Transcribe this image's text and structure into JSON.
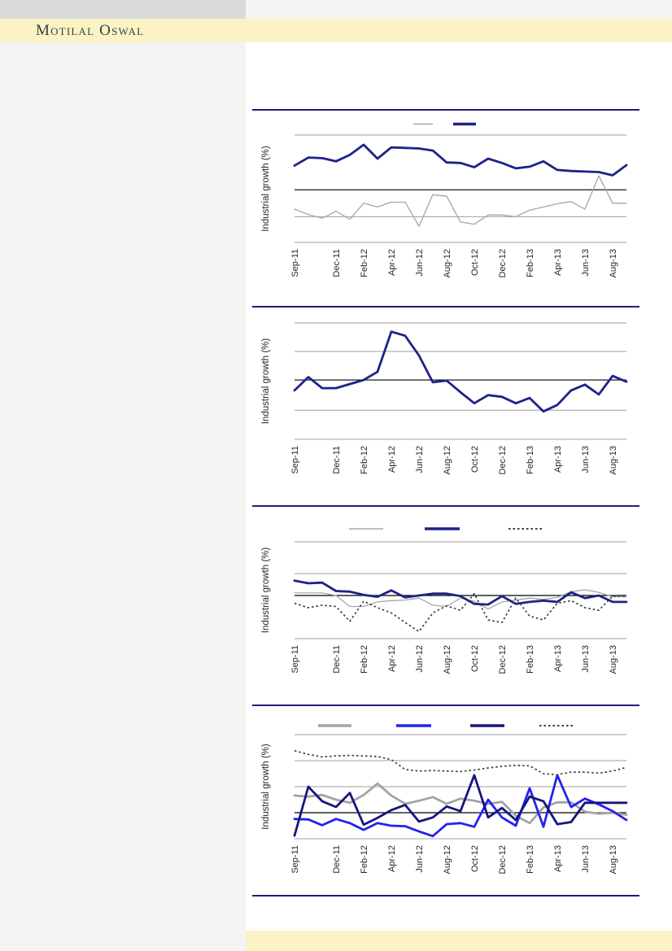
{
  "header": {
    "logo_text": "Motilal Oswal"
  },
  "colors": {
    "rule_navy": "#1d2079",
    "grid_gray": "#9f9f9f",
    "zero_black": "#000000",
    "tick_text": "#262626",
    "navy_line": "#1f2288",
    "navy_dark_line": "#15157e",
    "bright_blue_line": "#2222f0",
    "gray_line": "#a6a6a6",
    "dotted_line": "#3d3d3d",
    "brand_band_yellow": "#fbf3c6",
    "top_bar_gray": "#d9d9d9",
    "left_panel_gray": "#f4f4f4"
  },
  "chart_data": [
    {
      "type": "line",
      "title": "",
      "ylabel": "Industrial growth (%)",
      "categories": [
        "Sep-11",
        "Oct-11",
        "Nov-11",
        "Dec-11",
        "Jan-12",
        "Feb-12",
        "Mar-12",
        "Apr-12",
        "May-12",
        "Jun-12",
        "Jul-12",
        "Aug-12",
        "Sep-12",
        "Oct-12",
        "Nov-12",
        "Dec-12",
        "Jan-13",
        "Feb-13",
        "Mar-13",
        "Apr-13",
        "May-13",
        "Jun-13",
        "Jul-13",
        "Aug-13",
        "Sep-13"
      ],
      "x_tick_indices": [
        0,
        3,
        5,
        7,
        9,
        11,
        13,
        15,
        17,
        19,
        21,
        23
      ],
      "ylim": [
        -9.8,
        10.2
      ],
      "gridline_values": [
        10.2,
        -5,
        -9.8
      ],
      "zero_line": true,
      "legend": {
        "visible": true,
        "position": "top",
        "labels": [
          "",
          ""
        ]
      },
      "series": [
        {
          "name": "",
          "appearance": "gray",
          "color_hex": "#a6a6a6",
          "thickness": "thin",
          "line_style": "solid",
          "values": [
            -3.6,
            -4.6,
            -5.3,
            -4.0,
            -5.5,
            -2.5,
            -3.2,
            -2.3,
            -2.3,
            -6.8,
            -0.9,
            -1.2,
            -6.0,
            -6.4,
            -4.7,
            -4.7,
            -5.0,
            -3.8,
            -3.2,
            -2.6,
            -2.2,
            -3.6,
            2.6,
            -2.5,
            -2.5
          ]
        },
        {
          "name": "",
          "appearance": "navy",
          "color_hex": "#1f2288",
          "thickness": "thick",
          "line_style": "solid",
          "values": [
            4.5,
            6.0,
            5.9,
            5.3,
            6.5,
            8.4,
            5.8,
            7.9,
            7.8,
            7.7,
            7.3,
            5.1,
            5.0,
            4.2,
            5.8,
            5.0,
            4.0,
            4.3,
            5.3,
            3.7,
            3.5,
            3.4,
            3.3,
            2.7,
            4.6
          ]
        }
      ]
    },
    {
      "type": "line",
      "title": "",
      "ylabel": "Industrial growth (%)",
      "categories": [
        "Sep-11",
        "Oct-11",
        "Nov-11",
        "Dec-11",
        "Jan-12",
        "Feb-12",
        "Mar-12",
        "Apr-12",
        "May-12",
        "Jun-12",
        "Jul-12",
        "Aug-12",
        "Sep-12",
        "Oct-12",
        "Nov-12",
        "Dec-12",
        "Jan-13",
        "Feb-13",
        "Mar-13",
        "Apr-13",
        "May-13",
        "Jun-13",
        "Jul-13",
        "Aug-13",
        "Sep-13"
      ],
      "x_tick_indices": [
        0,
        3,
        5,
        7,
        9,
        11,
        13,
        15,
        17,
        19,
        21,
        23
      ],
      "ylim": [
        -10.2,
        9.8
      ],
      "gridline_values": [
        9.8,
        4.9,
        -5.2,
        -10.2
      ],
      "zero_line": true,
      "legend": {
        "visible": false,
        "position": "none",
        "labels": []
      },
      "series": [
        {
          "name": "",
          "appearance": "navy",
          "color_hex": "#1f2288",
          "thickness": "thick",
          "line_style": "solid",
          "values": [
            -1.8,
            0.5,
            -1.4,
            -1.4,
            -0.7,
            0.0,
            1.4,
            8.3,
            7.6,
            4.2,
            -0.4,
            -0.1,
            -2.1,
            -4.0,
            -2.6,
            -2.9,
            -4.0,
            -3.1,
            -5.4,
            -4.3,
            -1.8,
            -0.8,
            -2.5,
            0.7,
            -0.3
          ]
        }
      ]
    },
    {
      "type": "line",
      "title": "",
      "ylabel": "Industrial growth (%)",
      "categories": [
        "Sep-11",
        "Oct-11",
        "Nov-11",
        "Dec-11",
        "Jan-12",
        "Feb-12",
        "Mar-12",
        "Apr-12",
        "May-12",
        "Jun-12",
        "Jul-12",
        "Aug-12",
        "Sep-12",
        "Oct-12",
        "Nov-12",
        "Dec-12",
        "Jan-13",
        "Feb-13",
        "Mar-13",
        "Apr-13",
        "May-13",
        "Jun-13",
        "Jul-13",
        "Aug-13",
        "Sep-13"
      ],
      "x_tick_indices": [
        0,
        3,
        5,
        7,
        9,
        11,
        13,
        15,
        17,
        19,
        21,
        23
      ],
      "ylim": [
        -6.7,
        8.35
      ],
      "gridline_values": [
        8.35,
        3.4,
        -6.7
      ],
      "zero_line": true,
      "legend": {
        "visible": true,
        "position": "top",
        "labels": [
          "",
          "",
          ""
        ]
      },
      "series": [
        {
          "name": "",
          "appearance": "gray",
          "color_hex": "#a6a6a6",
          "thickness": "thin",
          "line_style": "solid",
          "values": [
            0.4,
            0.4,
            0.4,
            0.0,
            -1.7,
            -1.7,
            -1.0,
            -0.8,
            -0.7,
            -0.4,
            -1.5,
            -1.7,
            -0.4,
            -0.9,
            -2.1,
            -1.0,
            -0.7,
            -0.4,
            -0.6,
            -0.3,
            0.6,
            0.9,
            0.5,
            -0.2,
            -0.2
          ]
        },
        {
          "name": "",
          "appearance": "navy",
          "color_hex": "#1f2288",
          "thickness": "thick",
          "line_style": "solid",
          "values": [
            2.3,
            1.9,
            2.0,
            0.7,
            0.6,
            0.1,
            -0.2,
            0.8,
            -0.3,
            0.0,
            0.3,
            0.3,
            -0.1,
            -1.3,
            -1.4,
            -0.1,
            -1.3,
            -1.0,
            -0.8,
            -1.0,
            0.5,
            -0.4,
            0.0,
            -1.0,
            -1.0
          ]
        },
        {
          "name": "",
          "appearance": "dotted",
          "color_hex": "#3d3d3d",
          "thickness": "thin",
          "line_style": "dotted",
          "values": [
            -1.2,
            -1.9,
            -1.5,
            -1.7,
            -4.0,
            -0.9,
            -1.9,
            -2.7,
            -4.2,
            -5.6,
            -2.7,
            -1.6,
            -2.3,
            0.3,
            -3.8,
            -4.2,
            -0.4,
            -3.2,
            -3.8,
            -1.2,
            -0.8,
            -1.9,
            -2.3,
            -0.1,
            -0.1
          ]
        }
      ]
    },
    {
      "type": "line",
      "title": "",
      "ylabel": "Industrial growth (%)",
      "categories": [
        "Sep-11",
        "Oct-11",
        "Nov-11",
        "Dec-11",
        "Jan-12",
        "Feb-12",
        "Mar-12",
        "Apr-12",
        "May-12",
        "Jun-12",
        "Jul-12",
        "Aug-12",
        "Sep-12",
        "Oct-12",
        "Nov-12",
        "Dec-12",
        "Jan-13",
        "Feb-13",
        "Mar-13",
        "Apr-13",
        "May-13",
        "Jun-13",
        "Jul-13",
        "Aug-13",
        "Sep-13"
      ],
      "x_tick_indices": [
        0,
        3,
        5,
        7,
        9,
        11,
        13,
        15,
        17,
        19,
        21,
        23
      ],
      "ylim": [
        -5,
        15
      ],
      "gridline_values": [
        15,
        10,
        5,
        -5
      ],
      "zero_line": true,
      "legend": {
        "visible": true,
        "position": "top",
        "labels": [
          "",
          "",
          "",
          ""
        ]
      },
      "series": [
        {
          "name": "",
          "appearance": "gray",
          "color_hex": "#a3a3a3",
          "thickness": "thick",
          "line_style": "solid",
          "values": [
            3.3,
            3.1,
            3.4,
            2.5,
            1.9,
            3.4,
            5.6,
            3.3,
            1.7,
            2.3,
            3.0,
            1.7,
            2.7,
            2.3,
            1.7,
            2.1,
            -0.6,
            -2.0,
            1.0,
            2.0,
            2.0,
            0.2,
            -0.2,
            0.0,
            -0.4
          ]
        },
        {
          "name": "",
          "appearance": "bright-blue",
          "color_hex": "#2222f0",
          "thickness": "thick",
          "line_style": "solid",
          "values": [
            -1.2,
            -1.3,
            -2.4,
            -1.2,
            -2.0,
            -3.3,
            -2.0,
            -2.5,
            -2.6,
            -3.6,
            -4.5,
            -2.2,
            -2.0,
            -2.7,
            2.5,
            -0.9,
            -2.5,
            4.7,
            -2.7,
            7.2,
            1.1,
            2.7,
            1.6,
            0.3,
            -1.4
          ]
        },
        {
          "name": "",
          "appearance": "navy",
          "color_hex": "#15157e",
          "thickness": "thick",
          "line_style": "solid",
          "values": [
            -4.4,
            5.0,
            2.2,
            1.1,
            3.8,
            -2.3,
            -1.0,
            0.5,
            1.5,
            -1.7,
            -0.9,
            1.2,
            0.3,
            7.2,
            -0.9,
            0.9,
            -1.4,
            3.1,
            2.2,
            -2.2,
            -1.8,
            1.9,
            1.9,
            1.9,
            1.9
          ]
        },
        {
          "name": "",
          "appearance": "dotted",
          "color_hex": "#3d3d3d",
          "thickness": "thin",
          "line_style": "dotted",
          "values": [
            11.9,
            11.2,
            10.7,
            10.9,
            11.0,
            10.9,
            10.8,
            10.2,
            8.3,
            8.0,
            8.1,
            8.0,
            7.9,
            8.2,
            8.6,
            8.9,
            9.1,
            9.0,
            7.5,
            7.3,
            7.8,
            7.8,
            7.6,
            8.0,
            8.7
          ]
        }
      ]
    }
  ]
}
